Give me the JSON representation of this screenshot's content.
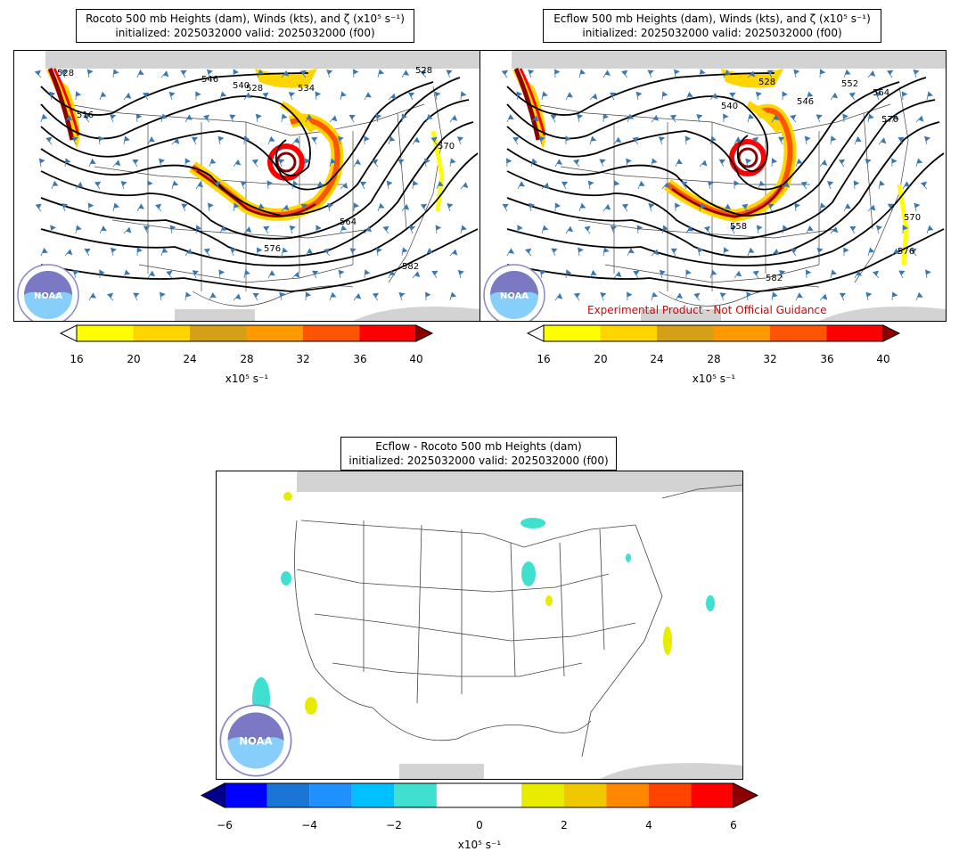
{
  "panels": {
    "left": {
      "title_line1": "Rocoto 500 mb Heights (dam), Winds (kts), and ζ (x10⁵ s⁻¹)",
      "title_line2": "initialized: 2025032000 valid: 2025032000 (f00)",
      "contour_labels": [
        "528",
        "534",
        "528",
        "540",
        "546",
        "516",
        "528",
        "570",
        "564",
        "582",
        "576"
      ]
    },
    "right": {
      "title_line1": "Ecflow 500 mb Heights (dam), Winds (kts), and ζ (x10⁵ s⁻¹)",
      "title_line2": "initialized: 2025032000 valid: 2025032000 (f00)",
      "contour_labels": [
        "528",
        "540",
        "552",
        "564",
        "570",
        "546",
        "558",
        "582",
        "570",
        "576"
      ],
      "disclaimer": "Experimental Product - Not Official Guidance"
    },
    "bottom": {
      "title_line1": "Ecflow - Rocoto 500 mb Heights (dam)",
      "title_line2": "initialized: 2025032000 valid: 2025032000 (f00)"
    }
  },
  "colorbars": {
    "vorticity": {
      "ticks": [
        "16",
        "20",
        "24",
        "28",
        "32",
        "36",
        "40"
      ],
      "colors": [
        "#ffff00",
        "#ffd500",
        "#d4a017",
        "#ff9900",
        "#ff5500",
        "#ff0000"
      ],
      "under_color": "#ffffff",
      "over_color": "#8b0000",
      "label": "x10⁵ s⁻¹"
    },
    "difference": {
      "ticks": [
        "−6",
        "−4",
        "−2",
        "0",
        "2",
        "4",
        "6"
      ],
      "colors": [
        "#0000ff",
        "#1a75d6",
        "#1e90ff",
        "#00bfff",
        "#40e0d0",
        "#ffffff",
        "#ffffff",
        "#e8ec00",
        "#f0c800",
        "#ff8800",
        "#ff4400",
        "#ff0000"
      ],
      "under_color": "#00008b",
      "over_color": "#8b0000",
      "label": "x10⁵ s⁻¹"
    }
  },
  "logo": {
    "text": "NOAA"
  }
}
